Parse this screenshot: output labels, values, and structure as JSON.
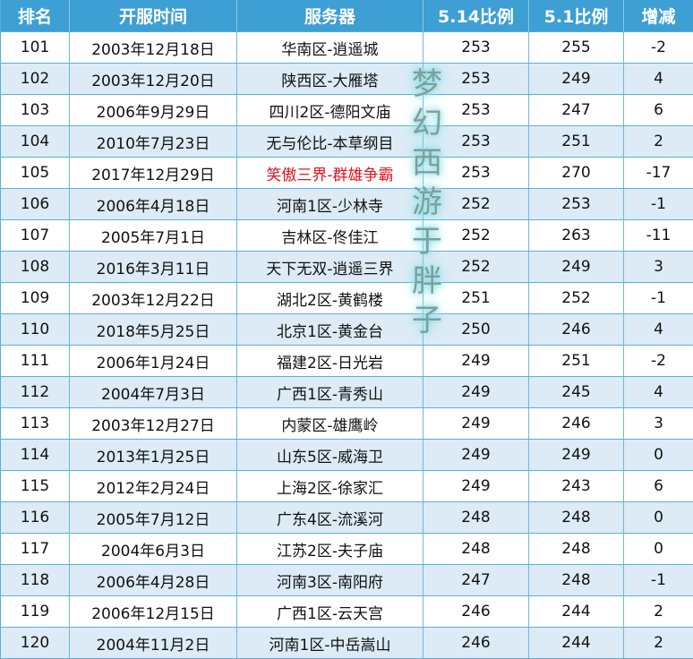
{
  "headers": [
    "排名",
    "开服时间",
    "服务器",
    "5.14比例",
    "5.1比例",
    "增减"
  ],
  "rows": [
    {
      "rank": "101",
      "date": "2003年12月18日",
      "server": "华南区-逍遥城",
      "r514": "253",
      "r51": "255",
      "diff": "-2"
    },
    {
      "rank": "102",
      "date": "2003年12月20日",
      "server": "陕西区-大雁塔",
      "r514": "253",
      "r51": "249",
      "diff": "4"
    },
    {
      "rank": "103",
      "date": "2006年9月29日",
      "server": "四川2区-德阳文庙",
      "r514": "253",
      "r51": "247",
      "diff": "6"
    },
    {
      "rank": "104",
      "date": "2010年7月23日",
      "server": "无与伦比-本草纲目",
      "r514": "253",
      "r51": "251",
      "diff": "2"
    },
    {
      "rank": "105",
      "date": "2017年12月29日",
      "server": "笑傲三界-群雄争霸",
      "r514": "253",
      "r51": "270",
      "diff": "-17",
      "highlight": true
    },
    {
      "rank": "106",
      "date": "2006年4月18日",
      "server": "河南1区-少林寺",
      "r514": "252",
      "r51": "253",
      "diff": "-1"
    },
    {
      "rank": "107",
      "date": "2005年7月1日",
      "server": "吉林区-佟佳江",
      "r514": "252",
      "r51": "263",
      "diff": "-11"
    },
    {
      "rank": "108",
      "date": "2016年3月11日",
      "server": "天下无双-逍遥三界",
      "r514": "252",
      "r51": "249",
      "diff": "3"
    },
    {
      "rank": "109",
      "date": "2003年12月22日",
      "server": "湖北2区-黄鹤楼",
      "r514": "251",
      "r51": "252",
      "diff": "-1"
    },
    {
      "rank": "110",
      "date": "2018年5月25日",
      "server": "北京1区-黄金台",
      "r514": "250",
      "r51": "246",
      "diff": "4"
    },
    {
      "rank": "111",
      "date": "2006年1月24日",
      "server": "福建2区-日光岩",
      "r514": "249",
      "r51": "251",
      "diff": "-2"
    },
    {
      "rank": "112",
      "date": "2004年7月3日",
      "server": "广西1区-青秀山",
      "r514": "249",
      "r51": "245",
      "diff": "4"
    },
    {
      "rank": "113",
      "date": "2003年12月27日",
      "server": "内蒙区-雄鹰岭",
      "r514": "249",
      "r51": "246",
      "diff": "3"
    },
    {
      "rank": "114",
      "date": "2013年1月25日",
      "server": "山东5区-威海卫",
      "r514": "249",
      "r51": "249",
      "diff": "0"
    },
    {
      "rank": "115",
      "date": "2012年2月24日",
      "server": "上海2区-徐家汇",
      "r514": "249",
      "r51": "243",
      "diff": "6"
    },
    {
      "rank": "116",
      "date": "2005年7月12日",
      "server": "广东4区-流溪河",
      "r514": "248",
      "r51": "248",
      "diff": "0"
    },
    {
      "rank": "117",
      "date": "2004年6月3日",
      "server": "江苏2区-夫子庙",
      "r514": "248",
      "r51": "248",
      "diff": "0"
    },
    {
      "rank": "118",
      "date": "2006年4月28日",
      "server": "河南3区-南阳府",
      "r514": "247",
      "r51": "248",
      "diff": "-1"
    },
    {
      "rank": "119",
      "date": "2006年12月15日",
      "server": "广西1区-云天宫",
      "r514": "246",
      "r51": "244",
      "diff": "2"
    },
    {
      "rank": "120",
      "date": "2004年11月2日",
      "server": "河南1区-中岳嵩山",
      "r514": "246",
      "r51": "244",
      "diff": "2"
    }
  ],
  "watermark": "梦幻西游于胖子",
  "colors": {
    "header": "#3d9fd3",
    "alt_row": "#dcebf5",
    "highlight": "#e0141e"
  }
}
